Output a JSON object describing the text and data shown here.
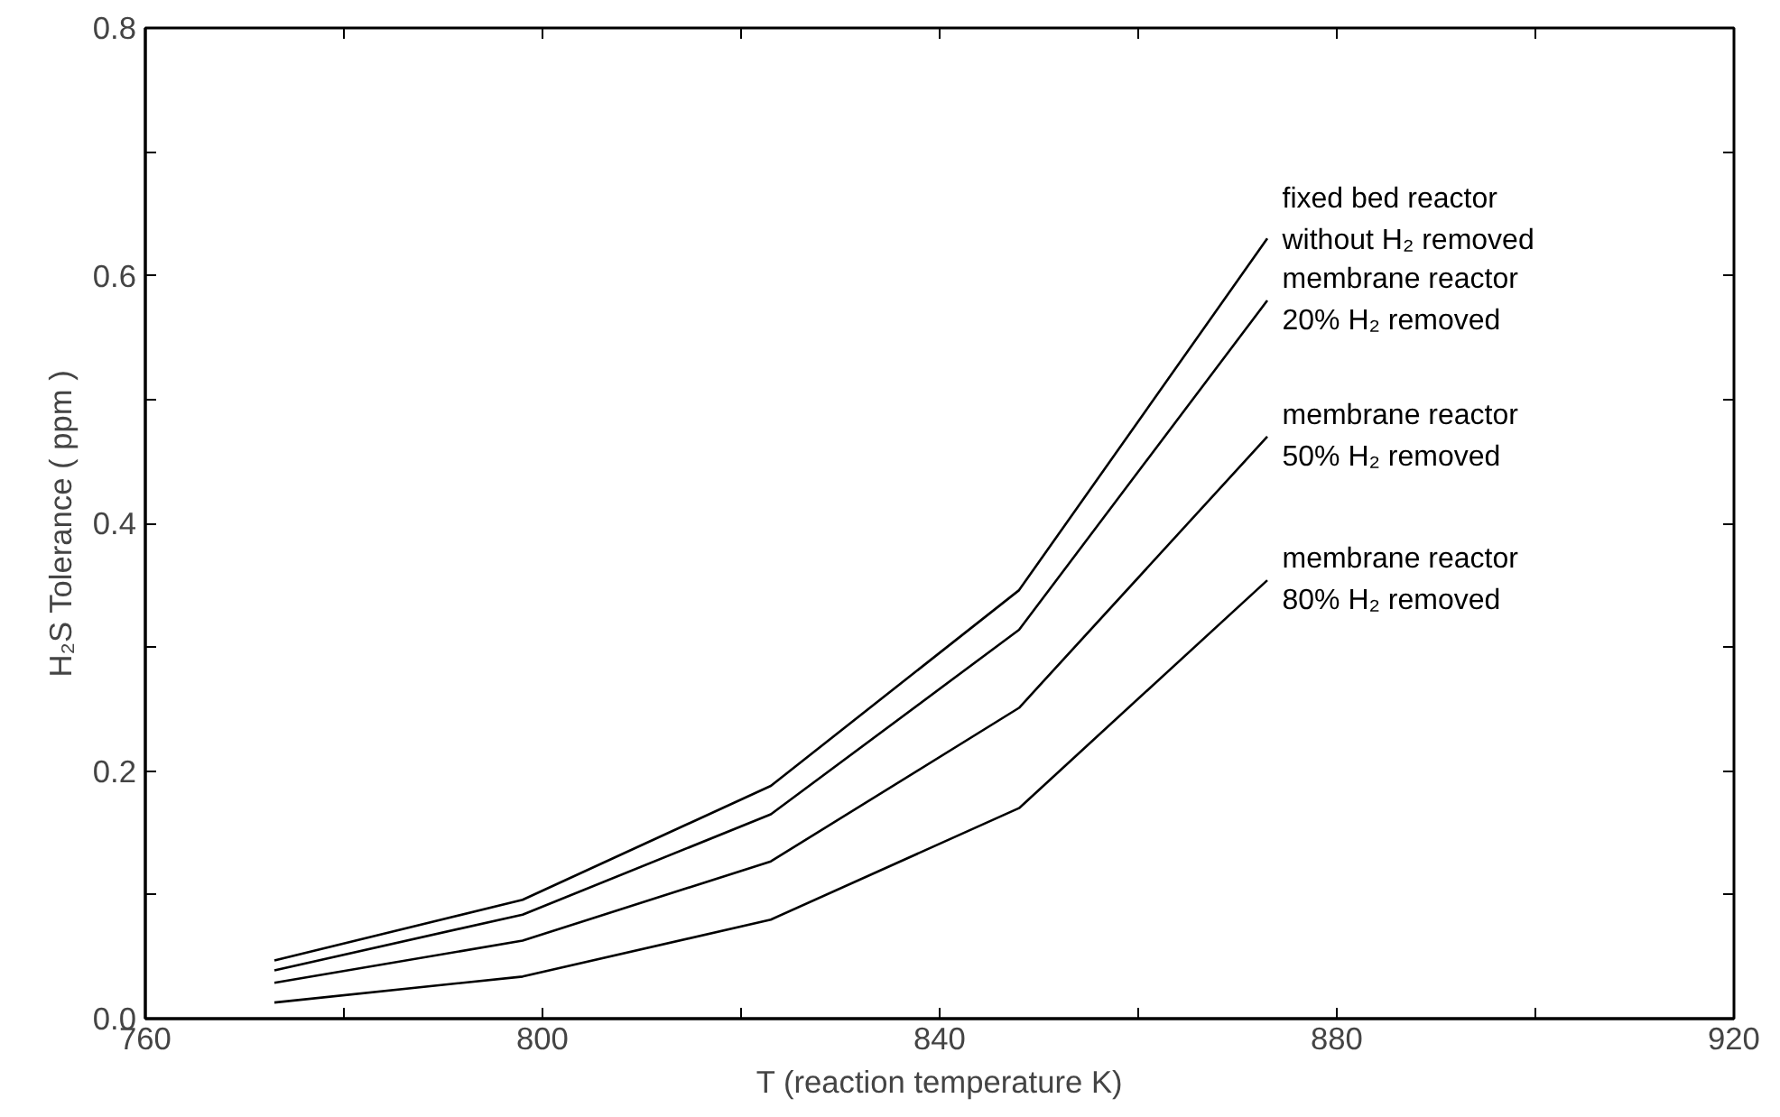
{
  "chart_data": {
    "type": "line",
    "xlabel": "T (reaction temperature K)",
    "ylabel": "H₂S Tolerance ( ppm )",
    "x": [
      773,
      798,
      823,
      848,
      873
    ],
    "xlim": [
      760,
      920
    ],
    "ylim": [
      0,
      0.8
    ],
    "xticks": [
      760,
      {
        "value": 780,
        "label": null
      },
      800,
      {
        "value": 820,
        "label": null
      },
      840,
      {
        "value": 860,
        "label": null
      },
      880,
      {
        "value": 900,
        "label": null
      },
      920
    ],
    "yticks": [
      {
        "value": 0,
        "label": "0.0"
      },
      {
        "value": 0.1,
        "label": null
      },
      0.2,
      {
        "value": 0.3,
        "label": null
      },
      0.4,
      {
        "value": 0.5,
        "label": null
      },
      0.6,
      {
        "value": 0.7,
        "label": null
      },
      0.8
    ],
    "grid": false,
    "legend": false,
    "marker": "none",
    "line_style": "solid",
    "series": [
      {
        "name": "fixed bed reactor\n  without H₂ removed",
        "color": "#000000",
        "values": [
          0.047,
          0.096,
          0.188,
          0.346,
          0.63
        ]
      },
      {
        "name": "membrane reactor\n20% H₂ removed",
        "color": "#000000",
        "values": [
          0.039,
          0.084,
          0.165,
          0.314,
          0.58
        ]
      },
      {
        "name": "membrane reactor\n50% H₂ removed",
        "color": "#000000",
        "values": [
          0.029,
          0.063,
          0.127,
          0.251,
          0.47
        ]
      },
      {
        "name": "membrane reactor\n80% H₂ removed",
        "color": "#000000",
        "values": [
          0.013,
          0.034,
          0.08,
          0.17,
          0.354
        ]
      }
    ]
  }
}
